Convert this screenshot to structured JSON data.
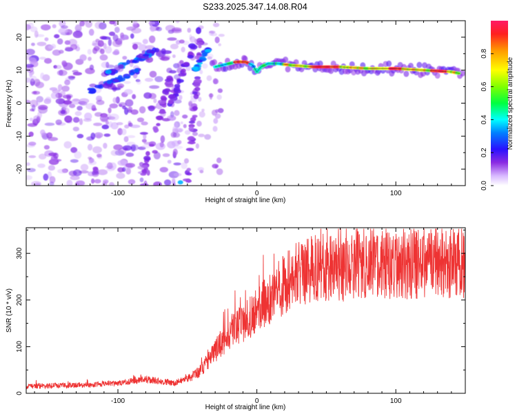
{
  "figure_title": "S233.2025.347.14.08.R04",
  "chart_data": [
    {
      "type": "heatmap",
      "title": "",
      "xlabel": "Height of straight line (km)",
      "ylabel": "Frequency (Hz)",
      "xlim": [
        -166,
        150
      ],
      "ylim": [
        -25,
        25
      ],
      "xticks": [
        -100,
        0,
        100
      ],
      "yticks": [
        -20,
        -10,
        0,
        10,
        20
      ],
      "ridge": {
        "description": "dominant spectral ridge",
        "x": [
          -30,
          -20,
          -15,
          -8,
          -3,
          0,
          3,
          8,
          15,
          25,
          40,
          60,
          80,
          100,
          120,
          140,
          146
        ],
        "y": [
          11,
          12,
          12.5,
          12.5,
          11.5,
          9.5,
          11,
          12,
          12,
          11.5,
          11,
          11,
          10.5,
          10.5,
          10,
          9.5,
          9
        ]
      },
      "colorbar": {
        "label": "Normalized spectral amplitude",
        "ticks": [
          0.0,
          0.2,
          0.4,
          0.6,
          0.8
        ],
        "range": [
          0,
          1
        ]
      }
    },
    {
      "type": "line",
      "title": "",
      "xlabel": "Height of straight line (km)",
      "ylabel": "SNR (10 * v/v)",
      "xlim": [
        -166,
        150
      ],
      "ylim": [
        0,
        355
      ],
      "xticks": [
        -100,
        0,
        100
      ],
      "yticks": [
        0,
        100,
        200,
        300
      ],
      "series": [
        {
          "name": "SNR",
          "color": "#ee3333",
          "envelope_x": [
            -166,
            -120,
            -100,
            -80,
            -60,
            -50,
            -40,
            -30,
            -20,
            -10,
            0,
            10,
            20,
            30,
            40,
            60,
            80,
            100,
            120,
            150
          ],
          "envelope_y": [
            15,
            18,
            22,
            30,
            22,
            30,
            50,
            90,
            130,
            150,
            175,
            205,
            235,
            255,
            265,
            272,
            278,
            278,
            280,
            283
          ]
        }
      ]
    }
  ],
  "colors": {
    "line": "#ee3333",
    "axes": "#000000"
  }
}
